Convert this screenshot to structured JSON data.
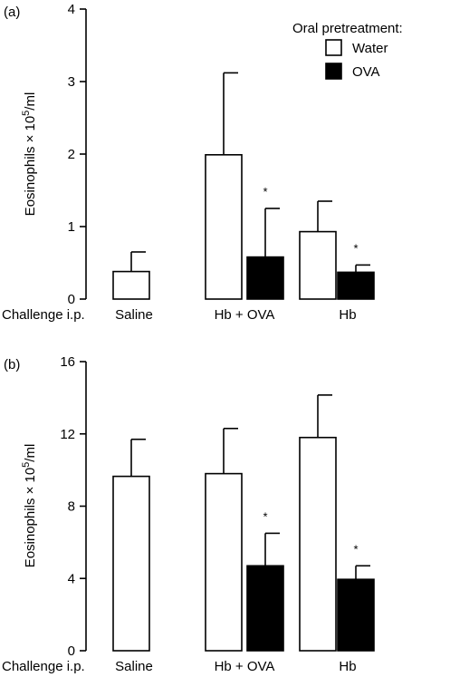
{
  "chart_data": [
    {
      "type": "bar",
      "panel_label": "(a)",
      "ylabel_prefix": "Eosinophils × 10",
      "ylabel_exp": "5",
      "ylabel_suffix": "/ml",
      "xlabel": "Challenge i.p.",
      "categories": [
        "Saline",
        "Hb + OVA",
        "Hb"
      ],
      "ylim": [
        0,
        4
      ],
      "yticks": [
        0,
        1,
        2,
        3,
        4
      ],
      "grid": false,
      "legend": {
        "title": "Oral pretreatment:",
        "placement": "top-right",
        "entries": [
          {
            "label": "Water",
            "fill": "#ffffff"
          },
          {
            "label": "OVA",
            "fill": "#000000"
          }
        ]
      },
      "series": [
        {
          "name": "Water",
          "color": "#ffffff",
          "values": [
            0.38,
            1.99,
            0.93
          ],
          "errors": [
            0.27,
            1.13,
            0.42
          ],
          "significant": [
            false,
            false,
            false
          ]
        },
        {
          "name": "OVA",
          "color": "#000000",
          "values": [
            null,
            0.58,
            0.37
          ],
          "errors": [
            null,
            0.67,
            0.1
          ],
          "significant": [
            false,
            true,
            true
          ]
        }
      ],
      "significance_marker": "*"
    },
    {
      "type": "bar",
      "panel_label": "(b)",
      "ylabel_prefix": "Eosinophils × 10",
      "ylabel_exp": "5",
      "ylabel_suffix": "/ml",
      "xlabel": "Challenge i.p.",
      "categories": [
        "Saline",
        "Hb + OVA",
        "Hb"
      ],
      "ylim": [
        0,
        16
      ],
      "yticks": [
        0,
        4,
        8,
        12,
        16
      ],
      "grid": false,
      "series": [
        {
          "name": "Water",
          "color": "#ffffff",
          "values": [
            9.65,
            9.8,
            11.8
          ],
          "errors": [
            2.05,
            2.5,
            2.35
          ],
          "significant": [
            false,
            false,
            false
          ]
        },
        {
          "name": "OVA",
          "color": "#000000",
          "values": [
            null,
            4.7,
            3.95
          ],
          "errors": [
            null,
            1.8,
            0.75
          ],
          "significant": [
            false,
            true,
            true
          ]
        }
      ],
      "significance_marker": "*"
    }
  ]
}
